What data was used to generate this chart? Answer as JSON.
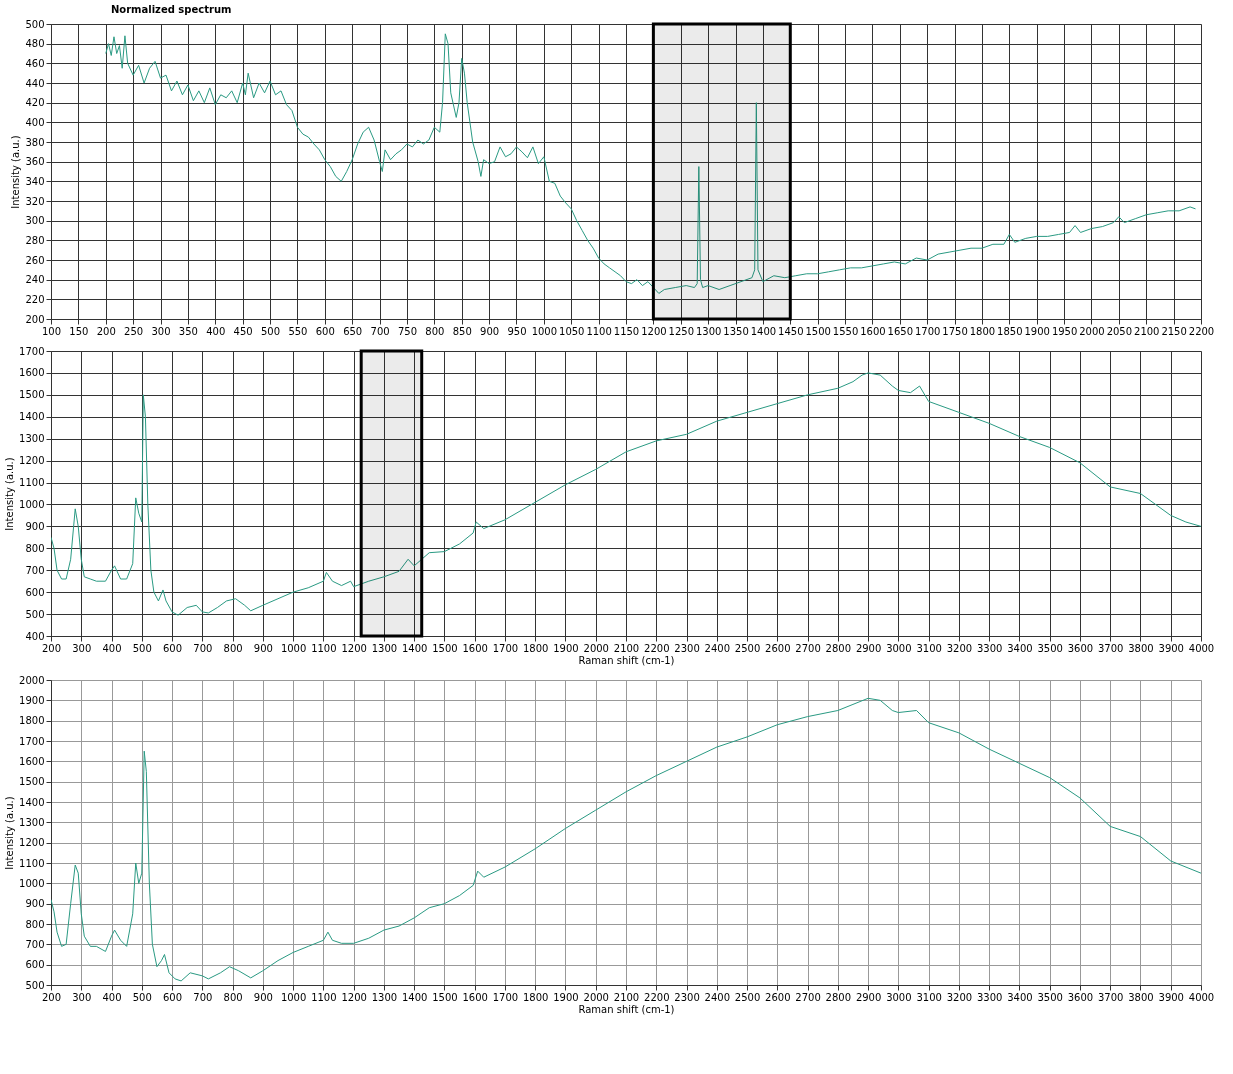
{
  "chart_data": [
    {
      "type": "line",
      "title": "Normalized spectrum",
      "ylabel": "Intensity (a.u.)",
      "grid": true,
      "xlim": [
        100,
        2200
      ],
      "ylim": [
        200,
        500
      ],
      "xticks": [
        100,
        150,
        200,
        250,
        300,
        350,
        400,
        450,
        500,
        550,
        600,
        650,
        700,
        750,
        800,
        850,
        900,
        950,
        1000,
        1050,
        1100,
        1150,
        1200,
        1250,
        1300,
        1350,
        1400,
        1450,
        1500,
        1550,
        1600,
        1650,
        1700,
        1750,
        1800,
        1850,
        1900,
        1950,
        2000,
        2050,
        2100,
        2150,
        2200
      ],
      "yticks": [
        200,
        220,
        240,
        260,
        280,
        300,
        320,
        340,
        360,
        380,
        400,
        420,
        440,
        460,
        480,
        500
      ],
      "bands": [
        {
          "axis": "x",
          "from": 1200,
          "to": 1450,
          "color": "#000000"
        }
      ],
      "series": [
        {
          "color": "#2a9a83",
          "x": [
            200,
            205,
            210,
            215,
            220,
            225,
            230,
            235,
            240,
            250,
            260,
            270,
            280,
            290,
            300,
            310,
            320,
            330,
            340,
            350,
            360,
            370,
            380,
            390,
            400,
            410,
            420,
            430,
            440,
            450,
            455,
            460,
            470,
            480,
            490,
            500,
            510,
            520,
            530,
            540,
            550,
            560,
            570,
            580,
            590,
            600,
            610,
            620,
            630,
            640,
            650,
            660,
            670,
            680,
            690,
            700,
            705,
            710,
            720,
            730,
            740,
            750,
            760,
            770,
            780,
            790,
            800,
            810,
            815,
            820,
            825,
            830,
            840,
            845,
            850,
            855,
            860,
            870,
            880,
            885,
            890,
            900,
            910,
            920,
            930,
            940,
            950,
            960,
            970,
            980,
            990,
            1000,
            1010,
            1020,
            1030,
            1040,
            1050,
            1060,
            1070,
            1080,
            1090,
            1100,
            1110,
            1120,
            1130,
            1140,
            1150,
            1160,
            1170,
            1180,
            1190,
            1200,
            1210,
            1220,
            1240,
            1260,
            1275,
            1280,
            1283,
            1286,
            1290,
            1300,
            1320,
            1340,
            1360,
            1380,
            1385,
            1388,
            1391,
            1400,
            1420,
            1440,
            1460,
            1480,
            1500,
            1520,
            1540,
            1560,
            1580,
            1600,
            1620,
            1640,
            1660,
            1680,
            1700,
            1720,
            1740,
            1760,
            1780,
            1800,
            1820,
            1840,
            1850,
            1860,
            1880,
            1900,
            1920,
            1940,
            1960,
            1970,
            1980,
            2000,
            2020,
            2040,
            2050,
            2060,
            2080,
            2100,
            2120,
            2140,
            2160,
            2180,
            2190
          ],
          "values": [
            470,
            480,
            468,
            487,
            470,
            478,
            455,
            488,
            460,
            448,
            458,
            440,
            455,
            462,
            445,
            448,
            432,
            442,
            428,
            438,
            422,
            432,
            420,
            435,
            418,
            428,
            425,
            432,
            420,
            440,
            428,
            450,
            425,
            440,
            430,
            442,
            428,
            432,
            418,
            412,
            395,
            388,
            385,
            378,
            372,
            362,
            355,
            345,
            340,
            350,
            362,
            378,
            390,
            395,
            382,
            360,
            350,
            372,
            362,
            368,
            372,
            378,
            375,
            382,
            378,
            382,
            395,
            390,
            420,
            490,
            480,
            430,
            405,
            420,
            465,
            450,
            420,
            380,
            360,
            345,
            362,
            358,
            360,
            375,
            365,
            368,
            375,
            370,
            364,
            375,
            358,
            365,
            340,
            338,
            325,
            318,
            312,
            300,
            290,
            280,
            272,
            262,
            256,
            252,
            248,
            244,
            238,
            236,
            240,
            234,
            238,
            232,
            226,
            230,
            232,
            234,
            232,
            236,
            355,
            240,
            232,
            234,
            230,
            234,
            238,
            242,
            250,
            420,
            250,
            238,
            244,
            242,
            244,
            246,
            246,
            248,
            250,
            252,
            252,
            254,
            256,
            258,
            256,
            262,
            260,
            266,
            268,
            270,
            272,
            272,
            276,
            276,
            286,
            278,
            282,
            284,
            284,
            286,
            288,
            295,
            288,
            292,
            294,
            298,
            304,
            298,
            302,
            306,
            308,
            310,
            310,
            314,
            312
          ]
        }
      ]
    },
    {
      "type": "line",
      "ylabel": "Intensity (a.u.)",
      "xlabel": "Raman shift (cm-1)",
      "grid": true,
      "xlim": [
        200,
        4000
      ],
      "ylim": [
        400,
        1700
      ],
      "xticks": [
        200,
        300,
        400,
        500,
        600,
        700,
        800,
        900,
        1000,
        1100,
        1200,
        1300,
        1400,
        1500,
        1600,
        1700,
        1800,
        1900,
        2000,
        2100,
        2200,
        2300,
        2400,
        2500,
        2600,
        2700,
        2800,
        2900,
        3000,
        3100,
        3200,
        3300,
        3400,
        3500,
        3600,
        3700,
        3800,
        3900,
        4000
      ],
      "yticks": [
        400,
        500,
        600,
        700,
        800,
        900,
        1000,
        1100,
        1200,
        1300,
        1400,
        1500,
        1600,
        1700
      ],
      "bands": [
        {
          "axis": "x",
          "from": 1225,
          "to": 1425,
          "color": "#000000"
        }
      ],
      "series": [
        {
          "color": "#2a9a83",
          "x": [
            200,
            210,
            220,
            235,
            250,
            265,
            280,
            290,
            300,
            310,
            330,
            350,
            380,
            400,
            410,
            430,
            450,
            470,
            480,
            490,
            500,
            505,
            512,
            520,
            530,
            540,
            555,
            570,
            580,
            600,
            620,
            650,
            680,
            700,
            720,
            750,
            780,
            810,
            840,
            860,
            900,
            950,
            1000,
            1050,
            1100,
            1110,
            1130,
            1160,
            1190,
            1200,
            1250,
            1300,
            1350,
            1380,
            1400,
            1450,
            1500,
            1550,
            1595,
            1605,
            1630,
            1700,
            1800,
            1900,
            2000,
            2100,
            2200,
            2300,
            2400,
            2500,
            2600,
            2700,
            2800,
            2850,
            2880,
            2900,
            2940,
            2980,
            3000,
            3040,
            3070,
            3100,
            3200,
            3300,
            3400,
            3500,
            3600,
            3700,
            3800,
            3900,
            3950,
            4000
          ],
          "values": [
            850,
            800,
            700,
            660,
            660,
            750,
            980,
            900,
            750,
            670,
            660,
            650,
            650,
            700,
            720,
            660,
            660,
            730,
            1030,
            960,
            920,
            1500,
            1400,
            1000,
            700,
            600,
            560,
            610,
            560,
            510,
            495,
            530,
            540,
            510,
            505,
            530,
            560,
            570,
            540,
            515,
            540,
            570,
            600,
            620,
            650,
            690,
            650,
            630,
            650,
            625,
            650,
            670,
            695,
            750,
            720,
            780,
            785,
            820,
            870,
            920,
            890,
            930,
            1010,
            1090,
            1160,
            1240,
            1290,
            1320,
            1380,
            1420,
            1460,
            1500,
            1530,
            1560,
            1590,
            1600,
            1590,
            1540,
            1520,
            1510,
            1540,
            1470,
            1420,
            1370,
            1310,
            1260,
            1190,
            1080,
            1050,
            950,
            920,
            900
          ]
        }
      ]
    },
    {
      "type": "line",
      "ylabel": "Intensity (a.u.)",
      "xlabel": "Raman shift (cm-1)",
      "grid": true,
      "xlim": [
        200,
        4000
      ],
      "ylim": [
        500,
        2000
      ],
      "xticks": [
        200,
        300,
        400,
        500,
        600,
        700,
        800,
        900,
        1000,
        1100,
        1200,
        1300,
        1400,
        1500,
        1600,
        1700,
        1800,
        1900,
        2000,
        2100,
        2200,
        2300,
        2400,
        2500,
        2600,
        2700,
        2800,
        2900,
        3000,
        3100,
        3200,
        3300,
        3400,
        3500,
        3600,
        3700,
        3800,
        3900,
        4000
      ],
      "yticks": [
        500,
        600,
        700,
        800,
        900,
        1000,
        1100,
        1200,
        1300,
        1400,
        1500,
        1600,
        1700,
        1800,
        1900,
        2000
      ],
      "series": [
        {
          "color": "#2a9a83",
          "x": [
            200,
            210,
            220,
            235,
            250,
            265,
            280,
            290,
            300,
            310,
            330,
            350,
            380,
            400,
            410,
            430,
            450,
            470,
            480,
            490,
            500,
            508,
            515,
            525,
            535,
            550,
            565,
            575,
            590,
            610,
            630,
            660,
            700,
            720,
            760,
            790,
            820,
            860,
            900,
            950,
            1000,
            1050,
            1100,
            1115,
            1130,
            1160,
            1200,
            1250,
            1300,
            1350,
            1400,
            1450,
            1500,
            1550,
            1595,
            1610,
            1630,
            1700,
            1800,
            1900,
            2000,
            2100,
            2200,
            2300,
            2400,
            2500,
            2600,
            2700,
            2800,
            2850,
            2900,
            2940,
            2980,
            3000,
            3060,
            3100,
            3200,
            3300,
            3400,
            3500,
            3600,
            3700,
            3800,
            3900,
            4000
          ],
          "values": [
            920,
            860,
            760,
            690,
            700,
            900,
            1090,
            1050,
            850,
            740,
            690,
            690,
            665,
            740,
            770,
            720,
            690,
            850,
            1100,
            1000,
            1050,
            1650,
            1550,
            1000,
            700,
            590,
            620,
            650,
            560,
            530,
            520,
            560,
            545,
            530,
            560,
            590,
            570,
            535,
            570,
            620,
            660,
            690,
            720,
            760,
            720,
            705,
            705,
            730,
            770,
            790,
            830,
            880,
            900,
            940,
            990,
            1060,
            1030,
            1080,
            1170,
            1270,
            1360,
            1450,
            1530,
            1600,
            1670,
            1720,
            1780,
            1820,
            1850,
            1880,
            1910,
            1900,
            1850,
            1840,
            1850,
            1790,
            1740,
            1660,
            1590,
            1520,
            1420,
            1280,
            1230,
            1110,
            1050
          ]
        }
      ]
    }
  ]
}
